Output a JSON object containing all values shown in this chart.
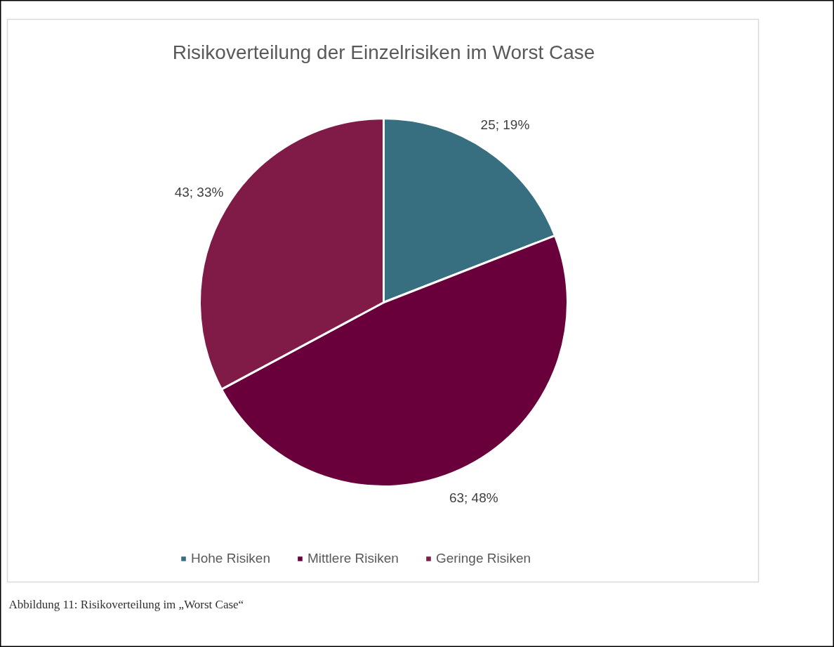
{
  "chart_data": {
    "type": "pie",
    "title": "Risikoverteilung der Einzelrisiken im Worst Case",
    "categories": [
      "Hohe Risiken",
      "Mittlere Risiken",
      "Geringe Risiken"
    ],
    "values": [
      25,
      63,
      43
    ],
    "colors": [
      "#376f80",
      "#69003b",
      "#801b48"
    ],
    "value_labels": [
      "25; 19%",
      "63; 48%",
      "43; 33%"
    ],
    "legend": "bottom",
    "annotations": [
      "Abbildung 11: Risikoverteilung im „Worst Case“"
    ]
  }
}
